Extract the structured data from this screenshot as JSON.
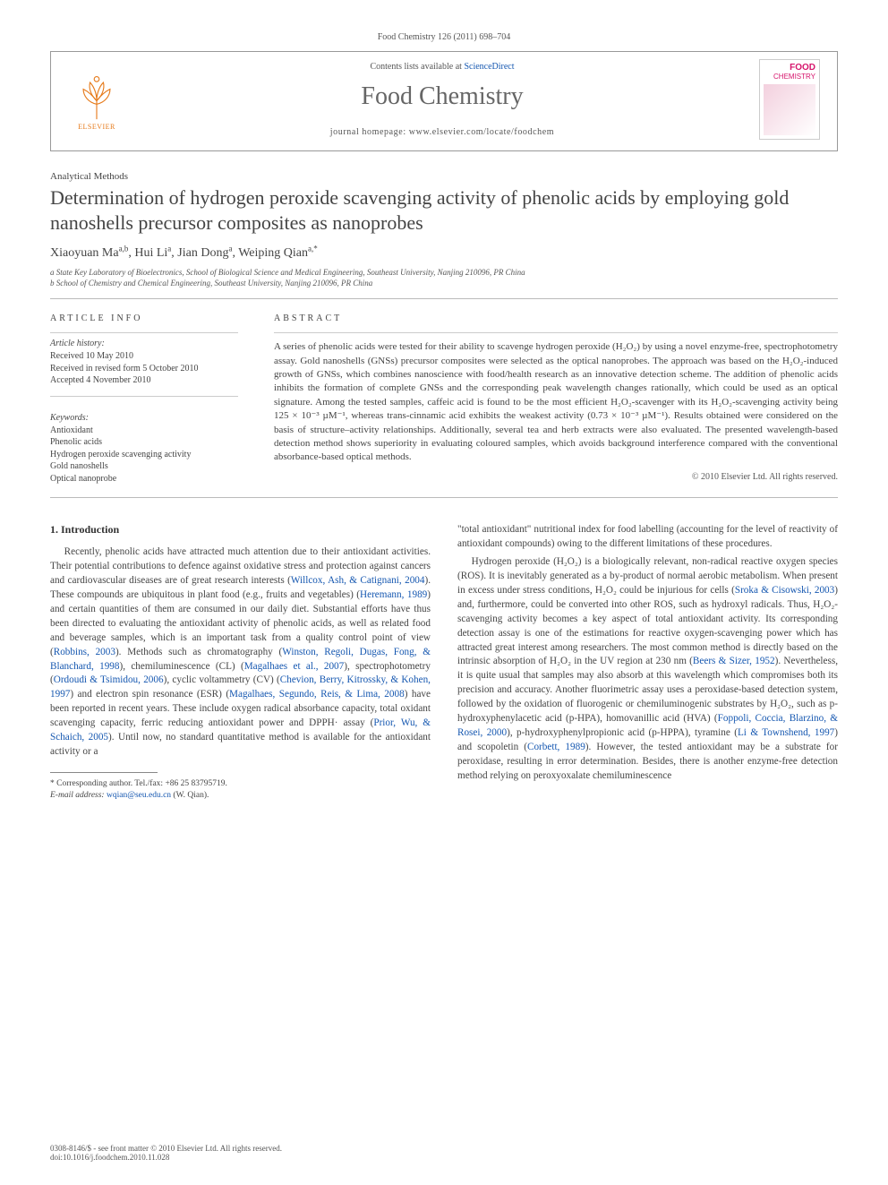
{
  "journal_ref": "Food Chemistry 126 (2011) 698–704",
  "header": {
    "contents_prefix": "Contents lists available at ",
    "contents_link": "ScienceDirect",
    "journal_title": "Food Chemistry",
    "homepage_prefix": "journal homepage: ",
    "homepage_url": "www.elsevier.com/locate/foodchem",
    "publisher": "ELSEVIER",
    "cover_brand1": "FOOD",
    "cover_brand2": "CHEMISTRY"
  },
  "article": {
    "section": "Analytical Methods",
    "title": "Determination of hydrogen peroxide scavenging activity of phenolic acids by employing gold nanoshells precursor composites as nanoprobes",
    "authors_html": "Xiaoyuan Ma<sup>a,b</sup>, Hui Li<sup>a</sup>, Jian Dong<sup>a</sup>, Weiping Qian<sup>a,*</sup>",
    "affiliations": [
      "a State Key Laboratory of Bioelectronics, School of Biological Science and Medical Engineering, Southeast University, Nanjing 210096, PR China",
      "b School of Chemistry and Chemical Engineering, Southeast University, Nanjing 210096, PR China"
    ]
  },
  "info": {
    "heading_left": "ARTICLE INFO",
    "heading_right": "ABSTRACT",
    "history_label": "Article history:",
    "history": [
      "Received 10 May 2010",
      "Received in revised form 5 October 2010",
      "Accepted 4 November 2010"
    ],
    "keywords_label": "Keywords:",
    "keywords": [
      "Antioxidant",
      "Phenolic acids",
      "Hydrogen peroxide scavenging activity",
      "Gold nanoshells",
      "Optical nanoprobe"
    ],
    "abstract": "A series of phenolic acids were tested for their ability to scavenge hydrogen peroxide (H₂O₂) by using a novel enzyme-free, spectrophotometry assay. Gold nanoshells (GNSs) precursor composites were selected as the optical nanoprobes. The approach was based on the H₂O₂-induced growth of GNSs, which combines nanoscience with food/health research as an innovative detection scheme. The addition of phenolic acids inhibits the formation of complete GNSs and the corresponding peak wavelength changes rationally, which could be used as an optical signature. Among the tested samples, caffeic acid is found to be the most efficient H₂O₂-scavenger with its H₂O₂-scavenging activity being 125 × 10⁻³ µM⁻¹, whereas trans-cinnamic acid exhibits the weakest activity (0.73 × 10⁻³ µM⁻¹). Results obtained were considered on the basis of structure–activity relationships. Additionally, several tea and herb extracts were also evaluated. The presented wavelength-based detection method shows superiority in evaluating coloured samples, which avoids background interference compared with the conventional absorbance-based optical methods.",
    "copyright": "© 2010 Elsevier Ltd. All rights reserved."
  },
  "body": {
    "section1_heading": "1. Introduction",
    "col1_p1": "Recently, phenolic acids have attracted much attention due to their antioxidant activities. Their potential contributions to defence against oxidative stress and protection against cancers and cardiovascular diseases are of great research interests (",
    "col1_cite1": "Willcox, Ash, & Catignani, 2004",
    "col1_p1b": "). These compounds are ubiquitous in plant food (e.g., fruits and vegetables) (",
    "col1_cite2": "Heremann, 1989",
    "col1_p1c": ") and certain quantities of them are consumed in our daily diet. Substantial efforts have thus been directed to evaluating the antioxidant activity of phenolic acids, as well as related food and beverage samples, which is an important task from a quality control point of view (",
    "col1_cite3": "Robbins, 2003",
    "col1_p1d": "). Methods such as chromatography (",
    "col1_cite4": "Winston, Regoli, Dugas, Fong, & Blanchard, 1998",
    "col1_p1e": "), chemiluminescence (CL) (",
    "col1_cite5": "Magalhaes et al., 2007",
    "col1_p1f": "), spectrophotometry (",
    "col1_cite6": "Ordoudi & Tsimidou, 2006",
    "col1_p1g": "), cyclic voltammetry (CV) (",
    "col1_cite7": "Chevion, Berry, Kitrossky, & Kohen, 1997",
    "col1_p1h": ") and electron spin resonance (ESR) (",
    "col1_cite8": "Magalhaes, Segundo, Reis, & Lima, 2008",
    "col1_p1i": ") have been reported in recent years. These include oxygen radical absorbance capacity, total oxidant scavenging capacity, ferric reducing antioxidant power and DPPH· assay (",
    "col1_cite9": "Prior, Wu, & Schaich, 2005",
    "col1_p1j": "). Until now, no standard quantitative method is available for the antioxidant activity or a",
    "col2_p1": "\"total antioxidant\" nutritional index for food labelling (accounting for the level of reactivity of antioxidant compounds) owing to the different limitations of these procedures.",
    "col2_p2a": "Hydrogen peroxide (H₂O₂) is a biologically relevant, non-radical reactive oxygen species (ROS). It is inevitably generated as a by-product of normal aerobic metabolism. When present in excess under stress conditions, H₂O₂ could be injurious for cells (",
    "col2_cite1": "Sroka & Cisowski, 2003",
    "col2_p2b": ") and, furthermore, could be converted into other ROS, such as hydroxyl radicals. Thus, H₂O₂-scavenging activity becomes a key aspect of total antioxidant activity. Its corresponding detection assay is one of the estimations for reactive oxygen-scavenging power which has attracted great interest among researchers. The most common method is directly based on the intrinsic absorption of H₂O₂ in the UV region at 230 nm (",
    "col2_cite2": "Beers & Sizer, 1952",
    "col2_p2c": "). Nevertheless, it is quite usual that samples may also absorb at this wavelength which compromises both its precision and accuracy. Another fluorimetric assay uses a peroxidase-based detection system, followed by the oxidation of fluorogenic or chemiluminogenic substrates by H₂O₂, such as p-hydroxyphenylacetic acid (p-HPA), homovanillic acid (HVA) (",
    "col2_cite3": "Foppoli, Coccia, Blarzino, & Rosei, 2000",
    "col2_p2d": "), p-hydroxyphenylpropionic acid (p-HPPA), tyramine (",
    "col2_cite4": "Li & Townshend, 1997",
    "col2_p2e": ") and scopoletin (",
    "col2_cite5": "Corbett, 1989",
    "col2_p2f": "). However, the tested antioxidant may be a substrate for peroxidase, resulting in error determination. Besides, there is another enzyme-free detection method relying on peroxyoxalate chemiluminescence"
  },
  "footnote": {
    "corr_label": "* Corresponding author. Tel./fax: +86 25 83795719.",
    "email_label": "E-mail address:",
    "email": "wqian@seu.edu.cn",
    "email_author": "(W. Qian)."
  },
  "doi": {
    "line1": "0308-8146/$ - see front matter © 2010 Elsevier Ltd. All rights reserved.",
    "line2": "doi:10.1016/j.foodchem.2010.11.028"
  },
  "colors": {
    "link": "#1557b0",
    "publisher": "#e67a1a",
    "cover_brand": "#d6156c"
  }
}
